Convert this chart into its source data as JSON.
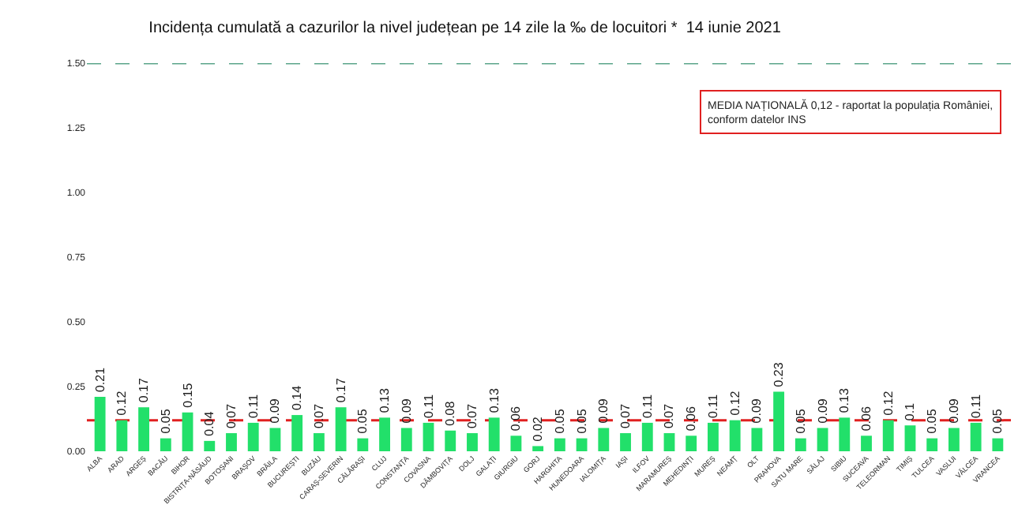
{
  "chart_data": {
    "type": "bar",
    "title": "Incidența cumulată a cazurilor la nivel județean pe 14 zile la ‰ de locuitori *  14 iunie 2021",
    "categories": [
      "ALBA",
      "ARAD",
      "ARGEȘ",
      "BACĂU",
      "BIHOR",
      "BISTRIȚA-NĂSĂUD",
      "BOTOȘANI",
      "BRAȘOV",
      "BRĂILA",
      "BUCUREȘTI",
      "BUZĂU",
      "CARAȘ-SEVERIN",
      "CĂLĂRAȘI",
      "CLUJ",
      "CONSTANȚA",
      "COVASNA",
      "DÂMBOVIȚA",
      "DOLJ",
      "GALAȚI",
      "GIURGIU",
      "GORJ",
      "HARGHITA",
      "HUNEDOARA",
      "IALOMIȚA",
      "IAȘI",
      "ILFOV",
      "MARAMUREȘ",
      "MEHEDINȚI",
      "MUREȘ",
      "NEAMȚ",
      "OLT",
      "PRAHOVA",
      "SATU MARE",
      "SĂLAJ",
      "SIBIU",
      "SUCEAVA",
      "TELEORMAN",
      "TIMIȘ",
      "TULCEA",
      "VASLUI",
      "VÂLCEA",
      "VRANCEA"
    ],
    "values": [
      0.21,
      0.12,
      0.17,
      0.05,
      0.15,
      0.04,
      0.07,
      0.11,
      0.09,
      0.14,
      0.07,
      0.17,
      0.05,
      0.13,
      0.09,
      0.11,
      0.08,
      0.07,
      0.13,
      0.06,
      0.02,
      0.05,
      0.05,
      0.09,
      0.07,
      0.11,
      0.07,
      0.06,
      0.11,
      0.12,
      0.09,
      0.23,
      0.05,
      0.09,
      0.13,
      0.06,
      0.12,
      0.1,
      0.05,
      0.09,
      0.11,
      0.05
    ],
    "color": "#22e06a",
    "data_labels": true,
    "ylim": [
      0,
      1.5
    ],
    "yticks": [
      {
        "value": 0,
        "label": "0.00"
      },
      {
        "value": 0.25,
        "label": "0.25"
      },
      {
        "value": 0.5,
        "label": "0.50"
      },
      {
        "value": 0.75,
        "label": "0.75"
      },
      {
        "value": 1,
        "label": "1.00"
      },
      {
        "value": 1.25,
        "label": "1.25"
      },
      {
        "value": 1.5,
        "label": "1.50"
      }
    ],
    "grid": false,
    "annotations": [
      "MEDIA NAȚIONALĂ 0,12 - raportat la populația României, conform datelor INS"
    ],
    "ref_lines": [
      {
        "axis": "y",
        "value": 0.12,
        "color": "#e02020",
        "line_style": "dashed"
      },
      {
        "axis": "y",
        "value": 1.5,
        "color": "#5aa58a",
        "line_style": "dashed"
      }
    ]
  }
}
